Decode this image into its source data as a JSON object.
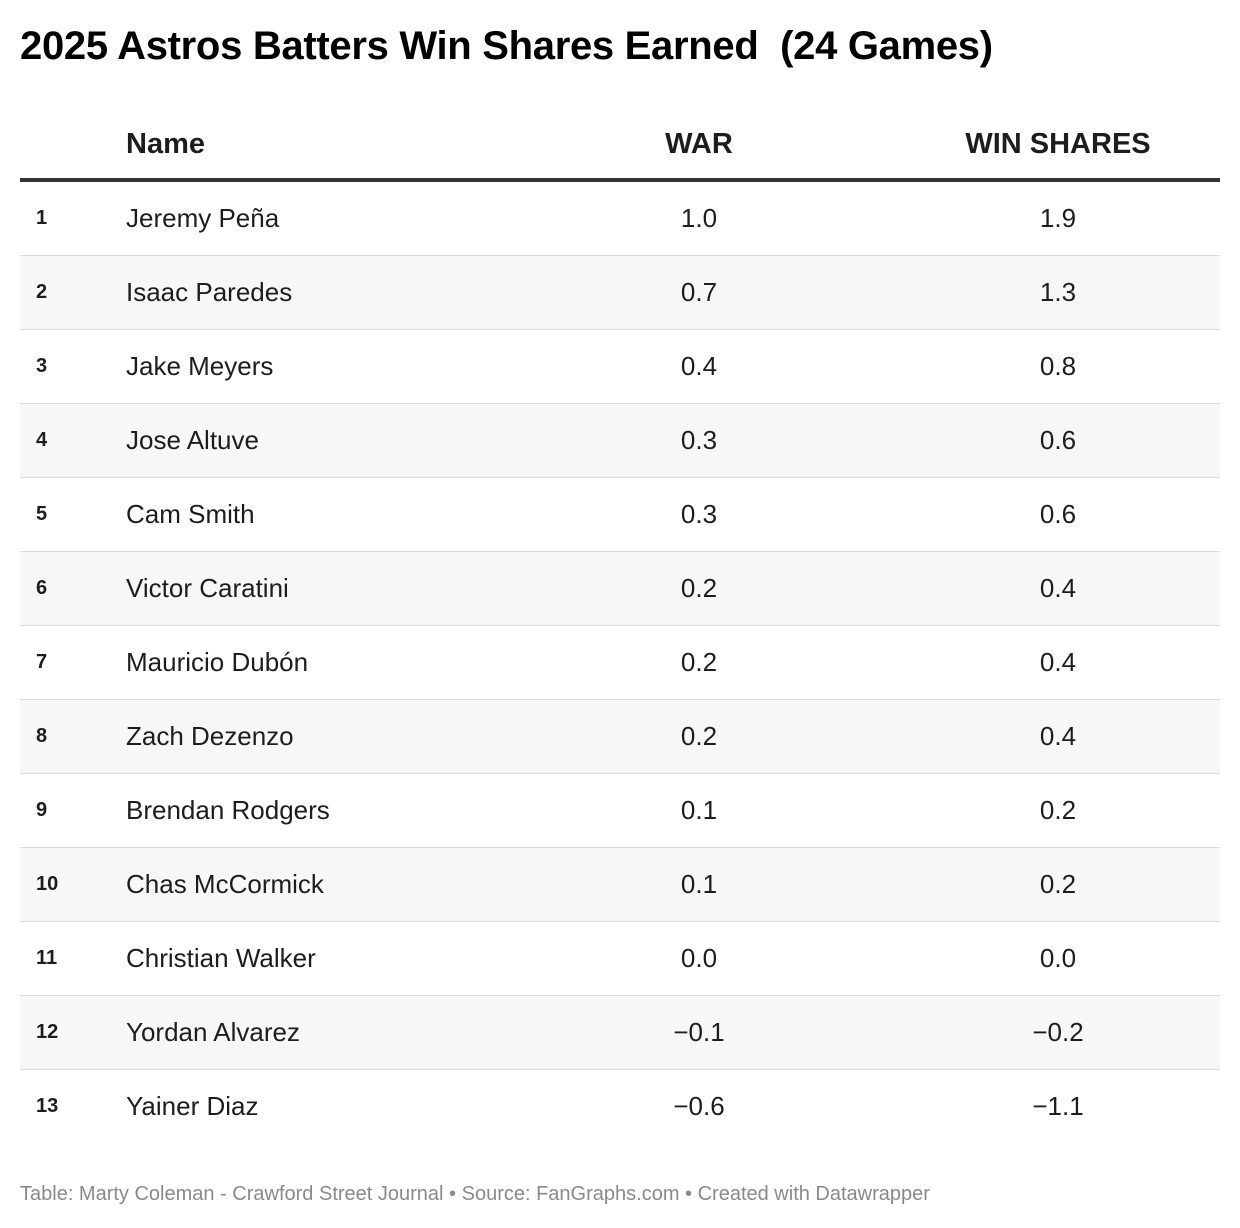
{
  "title": "2025 Astros Batters Win Shares Earned  (24 Games)",
  "footer": "Table: Marty Coleman - Crawford Street Journal • Source: FanGraphs.com • Created with Datawrapper",
  "chart_data": {
    "type": "table",
    "title": "2025 Astros Batters Win Shares Earned  (24 Games)",
    "columns": [
      "",
      "Name",
      "WAR",
      "WIN SHARES"
    ],
    "rows": [
      {
        "rank": "1",
        "name": "Jeremy Peña",
        "war": "1.0",
        "win_shares": "1.9"
      },
      {
        "rank": "2",
        "name": "Isaac Paredes",
        "war": "0.7",
        "win_shares": "1.3"
      },
      {
        "rank": "3",
        "name": "Jake Meyers",
        "war": "0.4",
        "win_shares": "0.8"
      },
      {
        "rank": "4",
        "name": "Jose Altuve",
        "war": "0.3",
        "win_shares": "0.6"
      },
      {
        "rank": "5",
        "name": "Cam Smith",
        "war": "0.3",
        "win_shares": "0.6"
      },
      {
        "rank": "6",
        "name": "Victor Caratini",
        "war": "0.2",
        "win_shares": "0.4"
      },
      {
        "rank": "7",
        "name": "Mauricio Dubón",
        "war": "0.2",
        "win_shares": "0.4"
      },
      {
        "rank": "8",
        "name": "Zach Dezenzo",
        "war": "0.2",
        "win_shares": "0.4"
      },
      {
        "rank": "9",
        "name": "Brendan Rodgers",
        "war": "0.1",
        "win_shares": "0.2"
      },
      {
        "rank": "10",
        "name": "Chas McCormick",
        "war": "0.1",
        "win_shares": "0.2"
      },
      {
        "rank": "11",
        "name": "Christian Walker",
        "war": "0.0",
        "win_shares": "0.0"
      },
      {
        "rank": "12",
        "name": "Yordan Alvarez",
        "war": "−0.1",
        "win_shares": "−0.2"
      },
      {
        "rank": "13",
        "name": "Yainer Diaz",
        "war": "−0.6",
        "win_shares": "−1.1"
      }
    ]
  }
}
